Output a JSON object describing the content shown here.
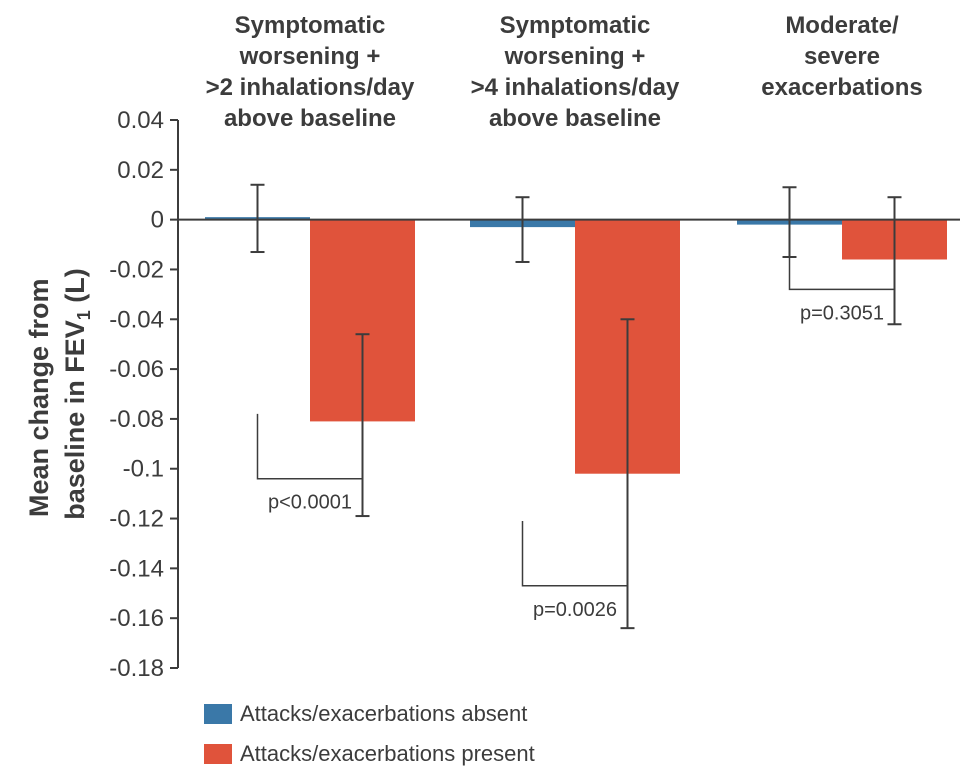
{
  "chart_data": {
    "type": "bar",
    "categories": [
      [
        "Symptomatic",
        "worsening +",
        ">2 inhalations/day",
        "above baseline"
      ],
      [
        "Symptomatic",
        "worsening +",
        ">4 inhalations/day",
        "above baseline"
      ],
      [
        "Moderate/",
        "severe",
        "exacerbations"
      ]
    ],
    "ylabel_line1": "Mean change from",
    "ylabel_line2_pre": "baseline in FEV",
    "ylabel_line2_sub": "1",
    "ylabel_line2_post": " (L)",
    "ylim": [
      -0.18,
      0.04
    ],
    "yticks": [
      "0.04",
      "0.02",
      "0",
      "-0.02",
      "-0.04",
      "-0.06",
      "-0.08",
      "-0.1",
      "-0.12",
      "-0.14",
      "-0.16",
      "-0.18"
    ],
    "ytick_values": [
      0.04,
      0.02,
      0,
      -0.02,
      -0.04,
      -0.06,
      -0.08,
      -0.1,
      -0.12,
      -0.14,
      -0.16,
      -0.18
    ],
    "series": [
      {
        "name": "Attacks/exacerbations absent",
        "color": "#3a78a8",
        "values": [
          0.001,
          -0.003,
          -0.002
        ],
        "error_low": [
          -0.013,
          -0.017,
          -0.015
        ],
        "error_high": [
          0.014,
          0.009,
          0.013
        ]
      },
      {
        "name": "Attacks/exacerbations present",
        "color": "#e0533b",
        "values": [
          -0.081,
          -0.102,
          -0.016
        ],
        "error_low": [
          -0.119,
          -0.164,
          -0.042
        ],
        "error_high": [
          -0.046,
          -0.04,
          0.009
        ]
      }
    ],
    "p_values": [
      "p<0.0001",
      "p=0.0026",
      "p=0.3051"
    ],
    "p_bracket_levels": [
      -0.104,
      -0.147,
      -0.028
    ],
    "grid": false,
    "legend_position": "bottom-left"
  }
}
